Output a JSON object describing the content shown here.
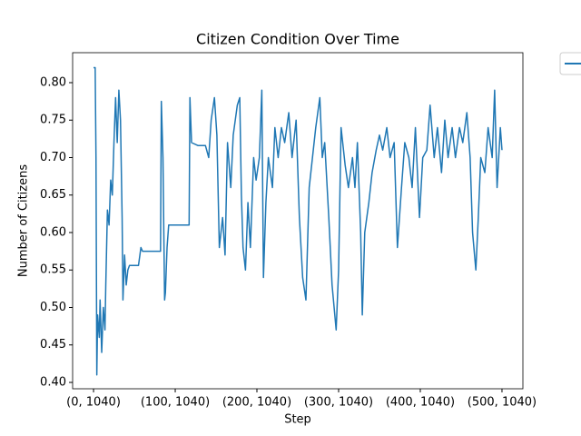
{
  "chart_data": {
    "type": "line",
    "title": "Citizen Condition Over Time",
    "xlabel": "Step",
    "ylabel": "Number of Citizens",
    "x": [
      0,
      2,
      3,
      4,
      5,
      7,
      8,
      10,
      12,
      14,
      15,
      17,
      19,
      21,
      23,
      25,
      27,
      29,
      31,
      33,
      35,
      36,
      38,
      40,
      42,
      44,
      50,
      55,
      58,
      60,
      70,
      82,
      83,
      85,
      87,
      88,
      90,
      92,
      95,
      97,
      117,
      118,
      120,
      128,
      137,
      141,
      144,
      148,
      151,
      154,
      158,
      161,
      164,
      168,
      171,
      176,
      179,
      181,
      183,
      186,
      189,
      192,
      196,
      199,
      203,
      206,
      208,
      211,
      214,
      219,
      222,
      226,
      230,
      234,
      239,
      243,
      248,
      252,
      256,
      260,
      264,
      268,
      272,
      277,
      280,
      283,
      288,
      292,
      297,
      300,
      303,
      308,
      312,
      317,
      320,
      323,
      327,
      329,
      332,
      337,
      341,
      346,
      350,
      354,
      359,
      363,
      368,
      372,
      377,
      381,
      386,
      390,
      394,
      399,
      403,
      408,
      412,
      417,
      421,
      426,
      430,
      434,
      439,
      443,
      448,
      452,
      457,
      461,
      464,
      468,
      471,
      474,
      479,
      483,
      488,
      491,
      494,
      498,
      500
    ],
    "series": [
      {
        "color": "#1f77b4",
        "values": [
          0.82,
          0.82,
          0.7,
          0.41,
          0.49,
          0.46,
          0.51,
          0.44,
          0.5,
          0.47,
          0.53,
          0.63,
          0.61,
          0.67,
          0.65,
          0.72,
          0.78,
          0.72,
          0.79,
          0.75,
          0.62,
          0.51,
          0.57,
          0.53,
          0.55,
          0.556,
          0.556,
          0.556,
          0.58,
          0.575,
          0.575,
          0.575,
          0.775,
          0.7,
          0.51,
          0.52,
          0.58,
          0.61,
          0.61,
          0.61,
          0.61,
          0.78,
          0.72,
          0.716,
          0.716,
          0.7,
          0.75,
          0.78,
          0.73,
          0.58,
          0.62,
          0.57,
          0.72,
          0.66,
          0.73,
          0.77,
          0.78,
          0.65,
          0.58,
          0.55,
          0.64,
          0.58,
          0.7,
          0.67,
          0.7,
          0.79,
          0.54,
          0.64,
          0.7,
          0.66,
          0.74,
          0.7,
          0.74,
          0.72,
          0.76,
          0.7,
          0.75,
          0.62,
          0.54,
          0.51,
          0.66,
          0.7,
          0.74,
          0.78,
          0.7,
          0.72,
          0.62,
          0.53,
          0.47,
          0.55,
          0.74,
          0.69,
          0.66,
          0.7,
          0.66,
          0.72,
          0.6,
          0.49,
          0.6,
          0.64,
          0.68,
          0.71,
          0.73,
          0.71,
          0.74,
          0.7,
          0.72,
          0.58,
          0.66,
          0.72,
          0.7,
          0.66,
          0.74,
          0.62,
          0.7,
          0.71,
          0.77,
          0.7,
          0.74,
          0.68,
          0.75,
          0.7,
          0.74,
          0.7,
          0.74,
          0.72,
          0.76,
          0.7,
          0.6,
          0.55,
          0.62,
          0.7,
          0.68,
          0.74,
          0.7,
          0.79,
          0.66,
          0.74,
          0.71
        ]
      }
    ],
    "xlim": [
      -25.6,
      525.6
    ],
    "ylim": [
      0.3915,
      0.84
    ],
    "xticks": [
      {
        "value": 0,
        "label": "(0, 1040)"
      },
      {
        "value": 100,
        "label": "(100, 1040)"
      },
      {
        "value": 200,
        "label": "(200, 1040)"
      },
      {
        "value": 300,
        "label": "(300, 1040)"
      },
      {
        "value": 400,
        "label": "(400, 1040)"
      },
      {
        "value": 500,
        "label": "(500, 1040)"
      }
    ],
    "yticks": [
      {
        "value": 0.4,
        "label": "0.40"
      },
      0.45,
      {
        "value": 0.5,
        "label": "0.50"
      },
      0.55,
      {
        "value": 0.6,
        "label": "0.60"
      },
      0.65,
      {
        "value": 0.7,
        "label": "0.70"
      },
      0.75,
      {
        "value": 0.8,
        "label": "0.80"
      }
    ],
    "grid": false
  }
}
